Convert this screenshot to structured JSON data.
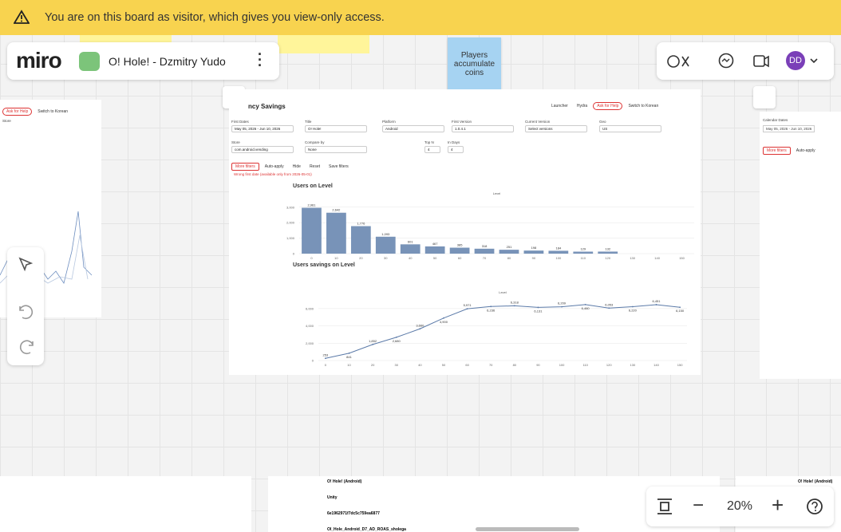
{
  "banner": {
    "text": "You are on this board as visitor, which gives you view-only access."
  },
  "header": {
    "logo": "miro",
    "board_title": "O! Hole! - Dzmitry Yudo"
  },
  "sticky": {
    "text": "Players accumulate coins"
  },
  "user": {
    "initials": "DD"
  },
  "zoom": {
    "level": "20%"
  },
  "left_card": {
    "buttons": [
      "Ask for Help",
      "Switch to Korean"
    ],
    "filter": "Store"
  },
  "right_card": {
    "label": "Calendar Dates",
    "date": "May 05, 2026 - Jun 10, 2026",
    "more": "More filters",
    "auto": "Auto-apply"
  },
  "dashboard": {
    "title": "ncy Savings",
    "buttons": [
      "Launcher",
      "Hydra",
      "Ask for Help",
      "Switch to Korean"
    ],
    "filters": [
      {
        "label": "First Dates",
        "value": "May 05, 2026 - Jun 10, 2026"
      },
      {
        "label": "Title",
        "value": "O! Hole!"
      },
      {
        "label": "Platform",
        "value": "Android"
      },
      {
        "label": "First Version",
        "value": "1.0.4.1"
      },
      {
        "label": "Current Version",
        "value": "Select versions"
      },
      {
        "label": "Geo",
        "value": "US"
      },
      {
        "label": "Store",
        "value": "com.android.vending"
      },
      {
        "label": "Compare by",
        "value": "None"
      },
      {
        "label": "Top N",
        "value": "4"
      },
      {
        "label": "In Days",
        "value": "4"
      }
    ],
    "actions": [
      "More filters",
      "Auto-apply",
      "Hide",
      "Reset",
      "Save filters"
    ],
    "warning": "Wrong first date (available only from 2026-05-01)"
  },
  "chart_data": [
    {
      "type": "bar",
      "title": "Users on Level",
      "axis_title": "Level",
      "categories": [
        0,
        10,
        20,
        30,
        40,
        50,
        60,
        70,
        80,
        90,
        100,
        110,
        120
      ],
      "xticks": [
        0,
        10,
        20,
        30,
        40,
        50,
        60,
        70,
        80,
        90,
        100,
        110,
        120,
        130,
        140,
        150
      ],
      "xlim": [
        -5,
        155
      ],
      "values": [
        2961,
        2642,
        1776,
        1093,
        601,
        467,
        385,
        318,
        251,
        198,
        184,
        129,
        132
      ],
      "value_labels": [
        "2,961",
        "2,642",
        "1,776",
        "1,093",
        "601",
        "467",
        "385",
        "318",
        "251",
        "198",
        "184",
        "129",
        "132"
      ],
      "color": "#7893b8",
      "ylim": [
        0,
        3400
      ],
      "yticks": [
        0,
        {
          "value": 1000,
          "label": "1,000"
        },
        {
          "value": 2000,
          "label": "2,000"
        },
        {
          "value": 3000,
          "label": "3,000"
        }
      ],
      "grid": true
    },
    {
      "type": "line",
      "title": "Users savings on Level",
      "axis_title": "Level",
      "x": [
        0,
        10,
        20,
        30,
        40,
        50,
        60,
        70,
        80,
        90,
        100,
        110,
        120,
        130,
        140,
        150
      ],
      "xticks": [
        0,
        10,
        20,
        30,
        40,
        50,
        60,
        70,
        80,
        90,
        100,
        110,
        120,
        130,
        140,
        150
      ],
      "xlim": [
        -3,
        153
      ],
      "values": [
        253,
        841,
        1852,
        2680,
        3660,
        4900,
        5971,
        6236,
        6318,
        6131,
        6209,
        6460,
        6053,
        6220,
        6451,
        6150
      ],
      "value_labels": [
        "253",
        "841",
        "1,852",
        "2,680",
        "3,660",
        "4,900",
        "5,971",
        "6,236",
        "6,318",
        "6,131",
        "6,209",
        "6,460",
        "6,053",
        "6,220",
        "6,451",
        "6,150"
      ],
      "color": "#5b7aa8",
      "ylim": [
        0,
        7000
      ],
      "yticks": [
        0,
        {
          "value": 2000,
          "label": "2,000"
        },
        {
          "value": 4000,
          "label": "4,000"
        },
        {
          "value": 6000,
          "label": "6,000"
        }
      ],
      "grid": true
    }
  ],
  "bottom": {
    "left_title": "O! Hole! (Android)",
    "rows": [
      "O! Hole! (Android)",
      "Unity",
      "6e1962971f7dc5c759ea6877",
      "OI_Hole_Android_D7_AD_ROAS_sholega"
    ],
    "right_title": "O! Hole! (Android)"
  }
}
